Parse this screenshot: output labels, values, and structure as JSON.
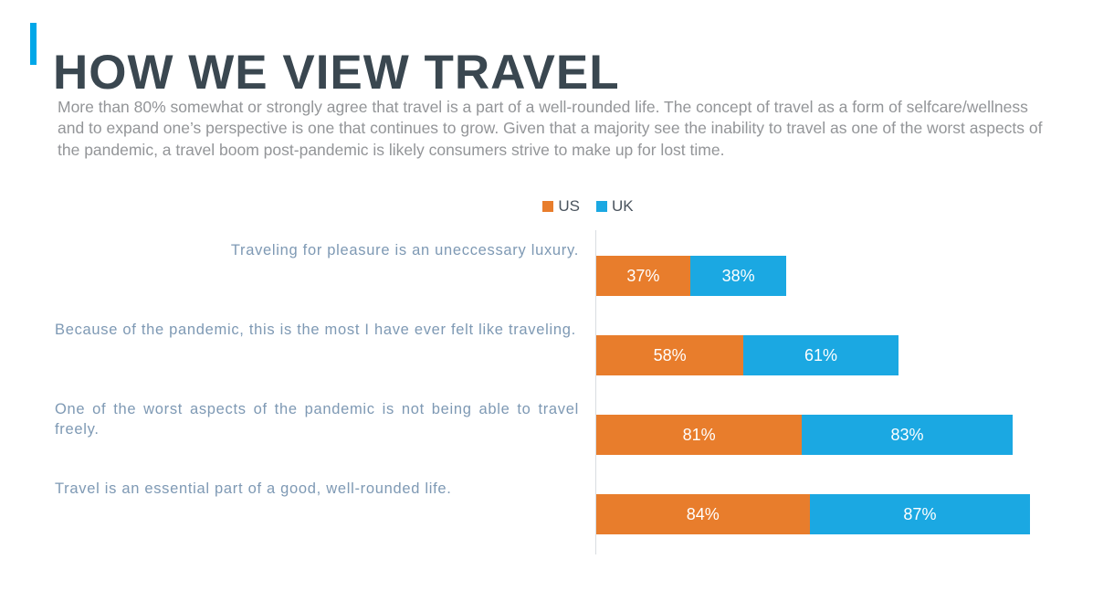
{
  "header": {
    "title": "HOW WE VIEW TRAVEL",
    "intro": "More than 80% somewhat or strongly agree that travel is a part of a well-rounded life. The concept of travel as a form of selfcare/wellness and to expand one’s perspective is one that continues to grow. Given that a majority see the inability to travel as one of the worst aspects of the pandemic, a travel boom post-pandemic is likely consumers strive to make up for lost time."
  },
  "colors": {
    "accent": "#00a7e8",
    "title_text": "#3a4750",
    "intro_text": "#939598",
    "category_text": "#7e99b4",
    "axis_line": "#d9dde1",
    "us_orange": "#e87d2c",
    "uk_blue": "#1ba8e2"
  },
  "chart_data": {
    "type": "bar",
    "orientation": "horizontal",
    "stacked": true,
    "grid": false,
    "legend_position": "top-center",
    "value_label_format": "percent",
    "categories": [
      "Traveling for pleasure is an uneccessary luxury.",
      "Because of the pandemic, this is the most I have ever felt like traveling.",
      "One of the worst aspects of the pandemic is not being able to travel freely.",
      "Travel is an essential part of a good, well-rounded life."
    ],
    "series": [
      {
        "name": "US",
        "color": "#e87d2c",
        "values": [
          37,
          58,
          81,
          84
        ]
      },
      {
        "name": "UK",
        "color": "#1ba8e2",
        "values": [
          38,
          61,
          83,
          87
        ]
      }
    ]
  }
}
